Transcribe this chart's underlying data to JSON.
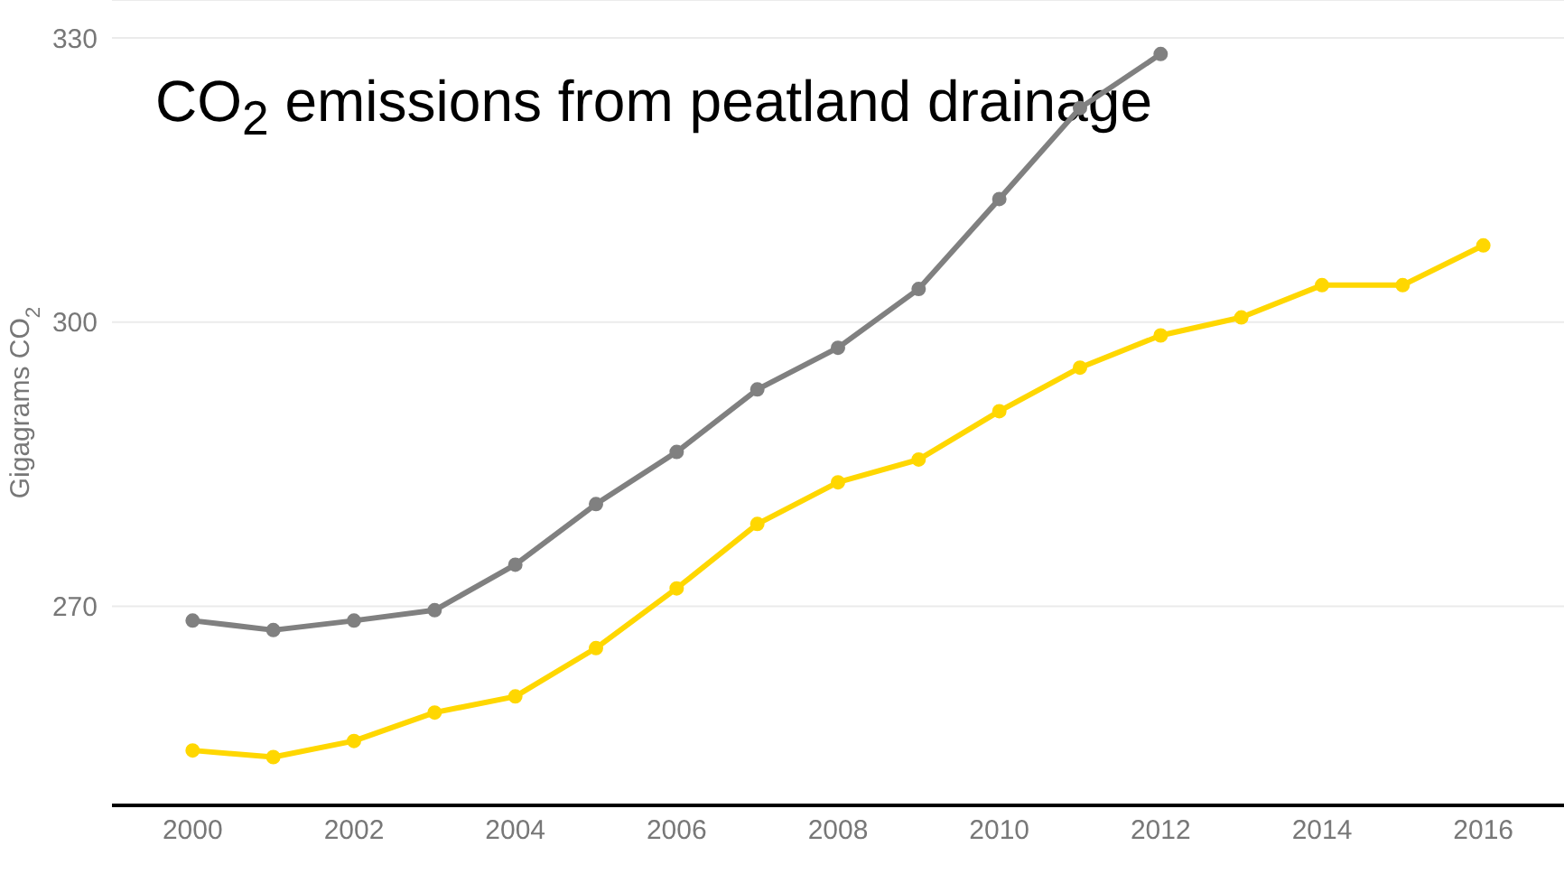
{
  "chart_data": {
    "type": "line",
    "title": "CO$_{2}$ emissions from peatland drainage",
    "ylabel": "Gigagrams CO$_{2}$",
    "x": [
      2000,
      2001,
      2002,
      2003,
      2004,
      2005,
      2006,
      2007,
      2008,
      2009,
      2010,
      2011,
      2012,
      2013,
      2014,
      2015,
      2016
    ],
    "series": [
      {
        "color": "#808080",
        "values": [
          268.5,
          267.5,
          268.5,
          269.6,
          274.4,
          280.8,
          286.3,
          292.9,
          297.3,
          303.5,
          313.0,
          322.6,
          328.3,
          null,
          null,
          null,
          null
        ]
      },
      {
        "color": "#ffd700",
        "values": [
          254.8,
          254.1,
          255.8,
          258.8,
          260.5,
          265.6,
          271.9,
          278.7,
          283.1,
          285.5,
          290.6,
          295.2,
          298.6,
          300.5,
          303.9,
          303.9,
          308.1
        ]
      }
    ],
    "xlim": [
      1999,
      2017
    ],
    "xticks": [
      2000,
      2002,
      2004,
      2006,
      2008,
      2010,
      2012,
      2014,
      2016
    ],
    "ylim": [
      249,
      334
    ],
    "yticks": [
      270,
      300,
      330
    ],
    "grid": "y",
    "legend": false,
    "marker": "circle",
    "line_style": "solid"
  }
}
